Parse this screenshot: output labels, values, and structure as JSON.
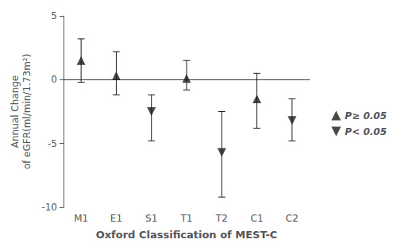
{
  "chart_data": {
    "type": "scatter",
    "categories": [
      "M1",
      "E1",
      "S1",
      "T1",
      "T2",
      "C1",
      "C2"
    ],
    "series": [
      {
        "name": "P≥ 0.05",
        "color": "#1a1a1a",
        "marker": "triangle-up",
        "values": [
          1.5,
          0.3,
          null,
          0.1,
          null,
          -1.5,
          null
        ],
        "ci_lower": [
          -0.2,
          -1.2,
          null,
          -0.8,
          null,
          -3.8,
          null
        ],
        "ci_upper": [
          3.2,
          2.2,
          null,
          1.5,
          null,
          0.5,
          null
        ]
      },
      {
        "name": "P< 0.05",
        "color": "#1a1a1a",
        "marker": "triangle-down",
        "values": [
          null,
          null,
          -2.5,
          null,
          -5.7,
          null,
          -3.2
        ],
        "ci_lower": [
          null,
          null,
          -4.8,
          null,
          -9.2,
          null,
          -4.8
        ],
        "ci_upper": [
          null,
          null,
          -1.2,
          null,
          -2.5,
          null,
          -1.5
        ]
      }
    ],
    "xlabel": "Oxford Classification of MEST-C",
    "ylabel": "Annual Change\nof eGFR(ml/min/1.73m²)",
    "ylim": [
      -10,
      5
    ],
    "yticks": [
      -10,
      -5,
      0,
      5
    ],
    "dotted_line_y": 0,
    "line_style": "dotted",
    "grid": false,
    "legend": "right"
  }
}
